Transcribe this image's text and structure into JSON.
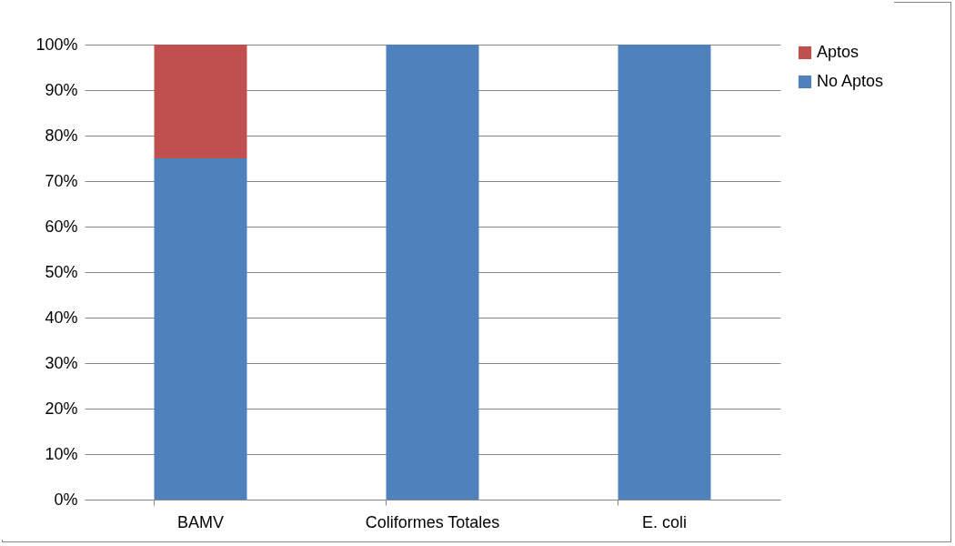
{
  "chart_data": {
    "type": "bar",
    "stacked": true,
    "categories": [
      "BAMV",
      "Coliformes Totales",
      "E. coli"
    ],
    "series": [
      {
        "name": "No Aptos",
        "color": "#4f81bd",
        "values": [
          75,
          100,
          100
        ]
      },
      {
        "name": "Aptos",
        "color": "#c0504d",
        "values": [
          25,
          0,
          0
        ]
      }
    ],
    "ylim": [
      0,
      100
    ],
    "yticks": [
      {
        "value": 0,
        "label": "0%"
      },
      {
        "value": 10,
        "label": "10%"
      },
      {
        "value": 20,
        "label": "20%"
      },
      {
        "value": 30,
        "label": "30%"
      },
      {
        "value": 40,
        "label": "40%"
      },
      {
        "value": 50,
        "label": "50%"
      },
      {
        "value": 60,
        "label": "60%"
      },
      {
        "value": 70,
        "label": "70%"
      },
      {
        "value": 80,
        "label": "80%"
      },
      {
        "value": 90,
        "label": "90%"
      },
      {
        "value": 100,
        "label": "100%"
      }
    ],
    "grid": "y",
    "legend": "right"
  }
}
